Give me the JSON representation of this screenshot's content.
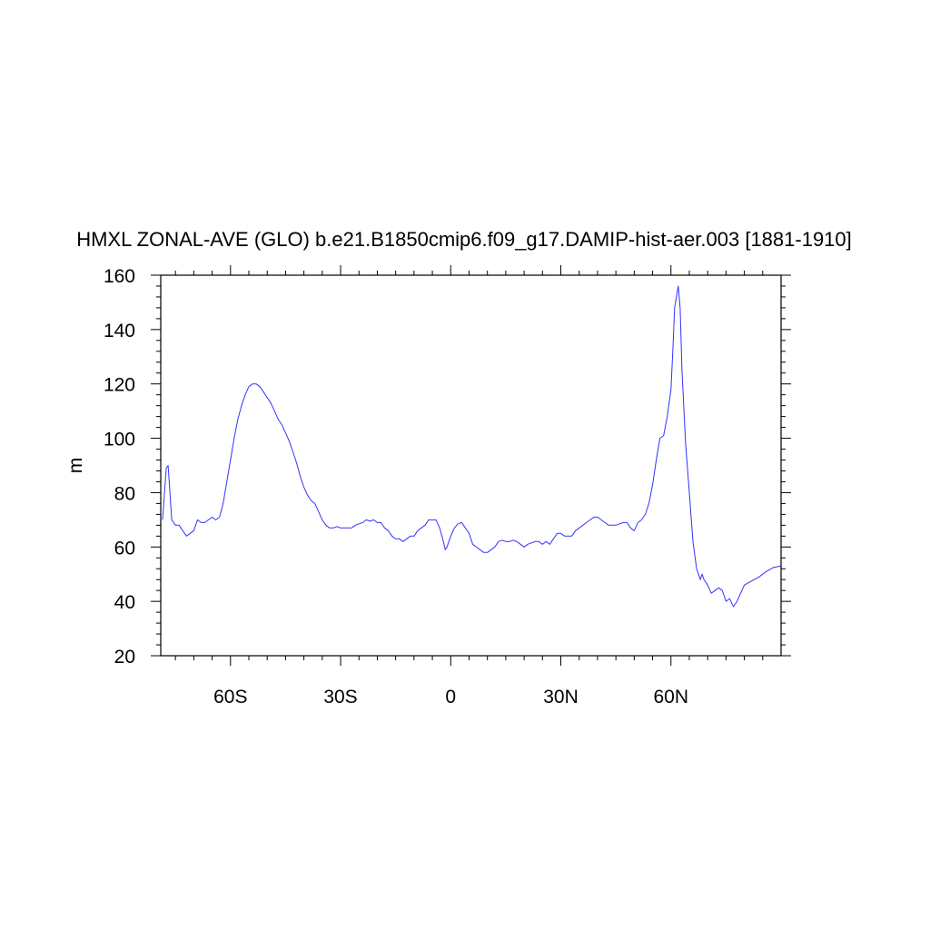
{
  "chart_data": {
    "type": "line",
    "title": "HMXL ZONAL-AVE (GLO) b.e21.B1850cmip6.f09_g17.DAMIP-hist-aer.003 [1881-1910]",
    "xlabel": "",
    "ylabel": "m",
    "xlim": [
      -79,
      90
    ],
    "ylim": [
      20,
      160
    ],
    "x_ticks": [
      {
        "value": -60,
        "label": "60S"
      },
      {
        "value": -30,
        "label": "30S"
      },
      {
        "value": 0,
        "label": "0"
      },
      {
        "value": 30,
        "label": "30N"
      },
      {
        "value": 60,
        "label": "60N"
      }
    ],
    "y_ticks": [
      {
        "value": 20,
        "label": "20"
      },
      {
        "value": 40,
        "label": "40"
      },
      {
        "value": 60,
        "label": "60"
      },
      {
        "value": 80,
        "label": "80"
      },
      {
        "value": 100,
        "label": "100"
      },
      {
        "value": 120,
        "label": "120"
      },
      {
        "value": 140,
        "label": "140"
      },
      {
        "value": 160,
        "label": "160"
      }
    ],
    "series": [
      {
        "color": "#3333ff",
        "points": [
          [
            -78.5,
            70
          ],
          [
            -77.5,
            89
          ],
          [
            -77,
            90
          ],
          [
            -76.5,
            80
          ],
          [
            -76,
            70
          ],
          [
            -75,
            68
          ],
          [
            -74,
            68
          ],
          [
            -73,
            66
          ],
          [
            -72,
            64
          ],
          [
            -71,
            65
          ],
          [
            -70,
            66
          ],
          [
            -69,
            70
          ],
          [
            -68,
            69
          ],
          [
            -67,
            69
          ],
          [
            -66,
            70
          ],
          [
            -65,
            71
          ],
          [
            -64,
            70
          ],
          [
            -63,
            71
          ],
          [
            -62,
            76
          ],
          [
            -61,
            84
          ],
          [
            -60,
            92
          ],
          [
            -59,
            100
          ],
          [
            -58,
            107
          ],
          [
            -57,
            112
          ],
          [
            -56,
            116
          ],
          [
            -55,
            119
          ],
          [
            -54,
            120
          ],
          [
            -53,
            120
          ],
          [
            -52,
            119
          ],
          [
            -51,
            117
          ],
          [
            -50,
            115
          ],
          [
            -49,
            113
          ],
          [
            -48,
            110
          ],
          [
            -47,
            107
          ],
          [
            -46,
            105
          ],
          [
            -45,
            102
          ],
          [
            -44,
            99
          ],
          [
            -43,
            95
          ],
          [
            -42,
            91
          ],
          [
            -41,
            86
          ],
          [
            -40,
            82
          ],
          [
            -39,
            79
          ],
          [
            -38,
            77
          ],
          [
            -37,
            76
          ],
          [
            -36,
            73
          ],
          [
            -35,
            70
          ],
          [
            -34,
            68
          ],
          [
            -33,
            67
          ],
          [
            -32,
            67
          ],
          [
            -31,
            67.5
          ],
          [
            -30,
            67
          ],
          [
            -29,
            67
          ],
          [
            -28,
            67
          ],
          [
            -27,
            67
          ],
          [
            -26,
            68
          ],
          [
            -25,
            68.5
          ],
          [
            -24,
            69
          ],
          [
            -23,
            70
          ],
          [
            -22,
            69.5
          ],
          [
            -21,
            70
          ],
          [
            -20,
            69
          ],
          [
            -19,
            69
          ],
          [
            -18,
            67
          ],
          [
            -17,
            66
          ],
          [
            -16,
            64
          ],
          [
            -15,
            63
          ],
          [
            -14,
            63
          ],
          [
            -13,
            62
          ],
          [
            -12,
            63
          ],
          [
            -11,
            64
          ],
          [
            -10,
            64
          ],
          [
            -9,
            66
          ],
          [
            -8,
            67
          ],
          [
            -7,
            68
          ],
          [
            -6,
            70
          ],
          [
            -5,
            70
          ],
          [
            -4,
            70
          ],
          [
            -3,
            67
          ],
          [
            -2,
            62
          ],
          [
            -1.5,
            59
          ],
          [
            -1,
            60
          ],
          [
            0,
            64
          ],
          [
            1,
            67
          ],
          [
            2,
            68.5
          ],
          [
            3,
            69
          ],
          [
            4,
            67
          ],
          [
            5,
            65
          ],
          [
            6,
            61
          ],
          [
            7,
            60
          ],
          [
            8,
            59
          ],
          [
            9,
            58
          ],
          [
            10,
            58
          ],
          [
            11,
            59
          ],
          [
            12,
            60
          ],
          [
            13,
            62
          ],
          [
            14,
            62.5
          ],
          [
            15,
            62
          ],
          [
            16,
            62
          ],
          [
            17,
            62.5
          ],
          [
            18,
            62
          ],
          [
            19,
            61
          ],
          [
            20,
            60
          ],
          [
            21,
            61
          ],
          [
            22,
            61.5
          ],
          [
            23,
            62
          ],
          [
            24,
            62
          ],
          [
            25,
            61
          ],
          [
            26,
            62
          ],
          [
            27,
            61
          ],
          [
            28,
            63
          ],
          [
            29,
            65
          ],
          [
            30,
            65
          ],
          [
            31,
            64
          ],
          [
            32,
            64
          ],
          [
            33,
            64
          ],
          [
            34,
            66
          ],
          [
            35,
            67
          ],
          [
            36,
            68
          ],
          [
            37,
            69
          ],
          [
            38,
            70
          ],
          [
            39,
            71
          ],
          [
            40,
            71
          ],
          [
            41,
            70
          ],
          [
            42,
            69
          ],
          [
            43,
            68
          ],
          [
            44,
            68
          ],
          [
            45,
            68
          ],
          [
            46,
            68.5
          ],
          [
            47,
            69
          ],
          [
            48,
            69
          ],
          [
            49,
            67
          ],
          [
            50,
            66
          ],
          [
            51,
            69
          ],
          [
            52,
            70
          ],
          [
            53,
            72
          ],
          [
            54,
            76
          ],
          [
            55,
            83
          ],
          [
            56,
            92
          ],
          [
            57,
            100
          ],
          [
            58,
            101
          ],
          [
            59,
            108
          ],
          [
            60,
            118
          ],
          [
            60.5,
            132
          ],
          [
            61,
            148
          ],
          [
            62,
            156
          ],
          [
            62.5,
            148
          ],
          [
            63,
            125
          ],
          [
            64,
            98
          ],
          [
            65,
            80
          ],
          [
            66,
            62
          ],
          [
            67,
            52
          ],
          [
            68,
            48
          ],
          [
            68.5,
            50
          ],
          [
            69,
            48
          ],
          [
            70,
            46
          ],
          [
            71,
            43
          ],
          [
            72,
            44
          ],
          [
            73,
            45
          ],
          [
            74,
            44
          ],
          [
            75,
            40
          ],
          [
            76,
            41
          ],
          [
            77,
            38
          ],
          [
            78,
            40
          ],
          [
            79,
            43
          ],
          [
            80,
            46
          ],
          [
            82,
            47.5
          ],
          [
            84,
            49
          ],
          [
            86,
            51
          ],
          [
            88,
            52.5
          ],
          [
            90,
            53
          ]
        ]
      }
    ]
  }
}
